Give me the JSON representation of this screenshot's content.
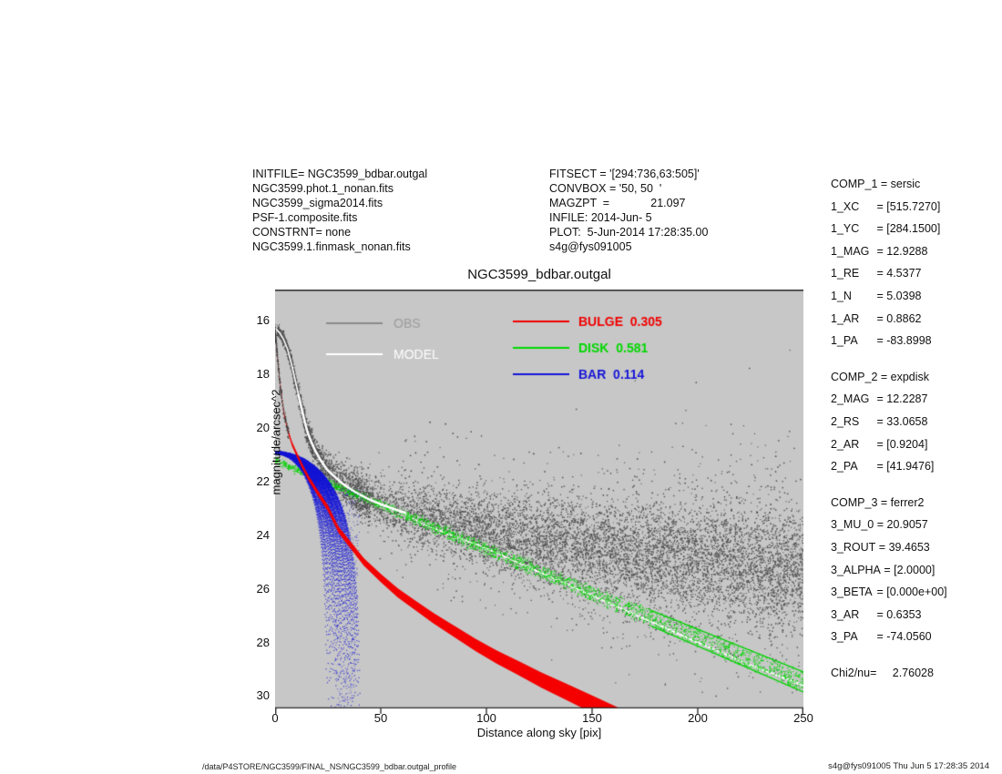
{
  "header": {
    "left_lines": [
      "INITFILE= NGC3599_bdbar.outgal",
      "NGC3599.phot.1_nonan.fits",
      "NGC3599_sigma2014.fits",
      "PSF-1.composite.fits",
      "CONSTRNT= none",
      "NGC3599.1.finmask_nonan.fits"
    ],
    "mid_lines": [
      "FITSECT = '[294:736,63:505]'",
      "CONVBOX = '50, 50  '",
      "MAGZPT  =             21.097",
      "INFILE: 2014-Jun- 5",
      "PLOT:  5-Jun-2014 17:28:35.00",
      "s4g@fys091005"
    ]
  },
  "params_panel": {
    "sections": [
      {
        "rows": [
          {
            "n": "COMP_1",
            "v": "sersic"
          },
          {
            "n": "1_XC",
            "v": "[515.7270]"
          },
          {
            "n": "1_YC",
            "v": "[284.1500]"
          },
          {
            "n": "1_MAG",
            "v": "12.9288"
          },
          {
            "n": "1_RE",
            "v": "4.5377"
          },
          {
            "n": "1_N",
            "v": "5.0398"
          },
          {
            "n": "1_AR",
            "v": "0.8862"
          },
          {
            "n": "1_PA",
            "v": "-83.8998"
          }
        ]
      },
      {
        "rows": [
          {
            "n": "COMP_2",
            "v": "expdisk"
          },
          {
            "n": "2_MAG",
            "v": "12.2287"
          },
          {
            "n": "2_RS",
            "v": "33.0658"
          },
          {
            "n": "2_AR",
            "v": "[0.9204]"
          },
          {
            "n": "2_PA",
            "v": "[41.9476]"
          }
        ]
      },
      {
        "rows": [
          {
            "n": "COMP_3",
            "v": "ferrer2"
          },
          {
            "n": "3_MU_0",
            "v": "20.9057"
          },
          {
            "n": "3_ROUT",
            "v": "39.4653"
          },
          {
            "n": "3_ALPHA",
            "v": "[2.0000]"
          },
          {
            "n": "3_BETA",
            "v": "[0.000e+00]"
          },
          {
            "n": "3_AR",
            "v": "0.6353"
          },
          {
            "n": "3_PA",
            "v": "-74.0560"
          }
        ]
      },
      {
        "rows": [
          {
            "n": "Chi2/nu=",
            "v": "2.76028",
            "noeq": true
          }
        ]
      }
    ]
  },
  "footer": {
    "left": "/data/P4STORE/NGC3599/FINAL_NS/NGC3599_bdbar.outgal_profile",
    "right": "s4g@fys091005  Thu Jun  5 17:28:35 2014"
  },
  "chart_data": {
    "type": "scatter",
    "title": "NGC3599_bdbar.outgal",
    "xlabel": "Distance along sky [pix]",
    "ylabel": "magnitude/arcsec^2",
    "xlim": [
      0,
      250
    ],
    "ylim": [
      30.46,
      14.85
    ],
    "xticks": [
      0,
      50,
      100,
      150,
      200,
      250
    ],
    "yticks": [
      16,
      18,
      20,
      22,
      24,
      26,
      28,
      30
    ],
    "grid": false,
    "plot_bg": "#c7c7c7",
    "colors": {
      "obs_points": "#4c4c4c",
      "model": "#ffffff",
      "bulge": "#f40000",
      "disk": "#00d200",
      "bar": "#1414d4"
    },
    "fractions": {
      "bulge": 0.305,
      "disk": 0.581,
      "bar": 0.114
    },
    "legend": {
      "position": "top-inside",
      "entries": [
        {
          "label": "OBS",
          "text_color": "#9d9d9d",
          "line_color": "#8a8a8a",
          "col": 0,
          "row": 0
        },
        {
          "label": "MODEL",
          "text_color": "#ffffff",
          "line_color": "#ffffff",
          "col": 0,
          "row": 1
        },
        {
          "label": "BULGE  0.305",
          "text_color": "#f20000",
          "line_color": "#f20000",
          "col": 1,
          "row": 0
        },
        {
          "label": "DISK  0.581",
          "text_color": "#00d800",
          "line_color": "#00d800",
          "col": 1,
          "row": 1
        },
        {
          "label": "BAR  0.114",
          "text_color": "#1515d8",
          "line_color": "#1515d8",
          "col": 1,
          "row": 2
        }
      ]
    },
    "series": {
      "obs_curve": [
        [
          0,
          16.3
        ],
        [
          2,
          16.45
        ],
        [
          4,
          16.7
        ],
        [
          6,
          17.1
        ],
        [
          8,
          17.7
        ],
        [
          10,
          18.4
        ],
        [
          12,
          19.1
        ],
        [
          15,
          20.1
        ],
        [
          18,
          20.7
        ],
        [
          21,
          21.15
        ],
        [
          25,
          21.6
        ],
        [
          30,
          21.95
        ],
        [
          33,
          22.15
        ],
        [
          38,
          22.4
        ],
        [
          44,
          22.65
        ],
        [
          50,
          22.85
        ],
        [
          57,
          23.05
        ],
        [
          65,
          23.25
        ],
        [
          75,
          23.45
        ],
        [
          88,
          23.65
        ],
        [
          100,
          23.8
        ]
      ],
      "model_curve": [
        [
          0,
          16.3
        ],
        [
          2,
          16.45
        ],
        [
          4,
          16.7
        ],
        [
          6,
          17.1
        ],
        [
          8,
          17.7
        ],
        [
          10,
          18.4
        ],
        [
          12,
          19.1
        ],
        [
          15,
          20.1
        ],
        [
          18,
          20.7
        ],
        [
          21,
          21.15
        ],
        [
          25,
          21.6
        ],
        [
          30,
          21.95
        ],
        [
          33,
          22.15
        ],
        [
          38,
          22.4
        ],
        [
          44,
          22.65
        ],
        [
          50,
          22.85
        ],
        [
          57,
          23.05
        ],
        [
          60,
          23.15
        ],
        [
          70,
          23.6
        ],
        [
          85,
          24.05
        ],
        [
          100,
          24.5
        ],
        [
          120,
          25.2
        ],
        [
          140,
          25.9
        ],
        [
          160,
          26.6
        ],
        [
          180,
          27.3
        ],
        [
          200,
          28.0
        ],
        [
          225,
          28.85
        ],
        [
          250,
          29.6
        ]
      ],
      "cloud_center": [
        [
          35,
          22.3
        ],
        [
          60,
          23.2
        ],
        [
          100,
          23.9
        ],
        [
          150,
          24.5
        ],
        [
          200,
          24.95
        ],
        [
          250,
          25.35
        ]
      ],
      "bulge_center": [
        [
          0,
          16.4
        ],
        [
          2,
          18.1
        ],
        [
          4,
          19.4
        ],
        [
          6,
          20.1
        ],
        [
          8,
          20.6
        ],
        [
          10,
          20.95
        ],
        [
          13,
          21.45
        ],
        [
          16,
          21.9
        ],
        [
          20,
          22.4
        ],
        [
          25,
          23.0
        ],
        [
          30,
          23.8
        ],
        [
          36,
          24.4
        ],
        [
          42,
          25.0
        ],
        [
          50,
          25.6
        ],
        [
          58,
          26.15
        ],
        [
          66,
          26.6
        ],
        [
          75,
          27.1
        ],
        [
          85,
          27.6
        ],
        [
          95,
          28.1
        ],
        [
          105,
          28.55
        ],
        [
          115,
          28.95
        ],
        [
          126,
          29.4
        ],
        [
          138,
          29.85
        ],
        [
          150,
          30.3
        ],
        [
          163,
          30.8
        ]
      ],
      "bulge_halfwidth": [
        0.07,
        0.0017
      ],
      "disk_upper": [
        [
          0,
          21.15
        ],
        [
          250,
          29.1
        ]
      ],
      "disk_lower": [
        [
          0,
          21.3
        ],
        [
          250,
          29.85
        ]
      ],
      "bar": {
        "mu0": 20.93,
        "alpha": 2,
        "r_min": 24.5,
        "r_max": 40.5,
        "curves": 48
      }
    },
    "seed": 11
  }
}
